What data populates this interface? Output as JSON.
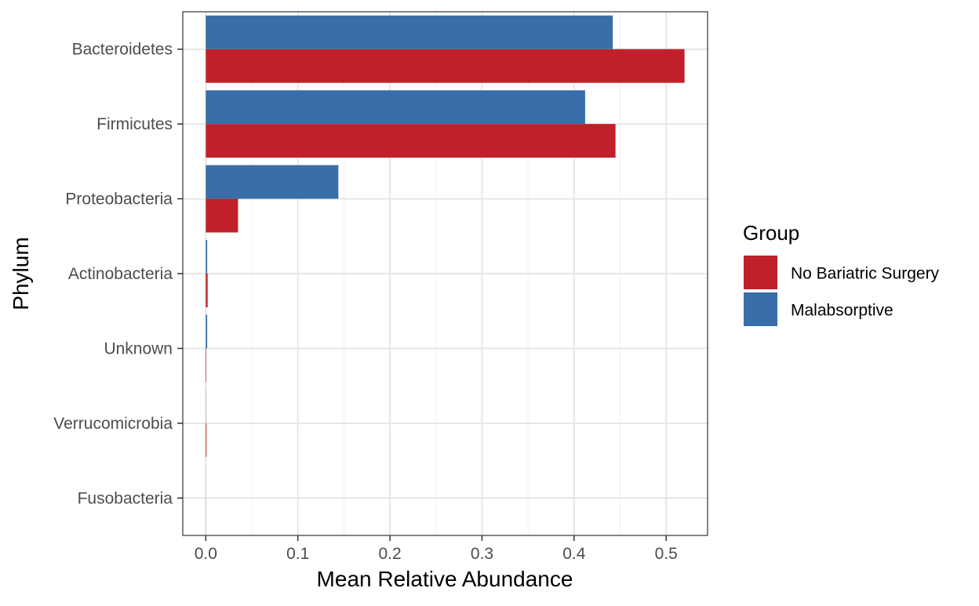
{
  "chart_data": {
    "type": "bar",
    "orientation": "horizontal",
    "categories": [
      "Bacteroidetes",
      "Firmicutes",
      "Proteobacteria",
      "Actinobacteria",
      "Unknown",
      "Verrucomicrobia",
      "Fusobacteria"
    ],
    "series": [
      {
        "name": "No Bariatric Surgery",
        "color": "#c0202a",
        "values": [
          0.52,
          0.445,
          0.035,
          0.002,
          0.0005,
          0.0008,
          0.0001
        ]
      },
      {
        "name": "Malabsorptive",
        "color": "#3a6ea8",
        "values": [
          0.442,
          0.412,
          0.144,
          0.0015,
          0.0015,
          0.0002,
          0.0001
        ]
      }
    ],
    "xlabel": "Mean Relative Abundance",
    "ylabel": "Phylum",
    "xlim": [
      -0.025,
      0.545
    ],
    "xticks": [
      "0.0",
      "0.1",
      "0.2",
      "0.3",
      "0.4",
      "0.5"
    ],
    "legend": {
      "title": "Group",
      "position": "right"
    },
    "grid": true
  }
}
